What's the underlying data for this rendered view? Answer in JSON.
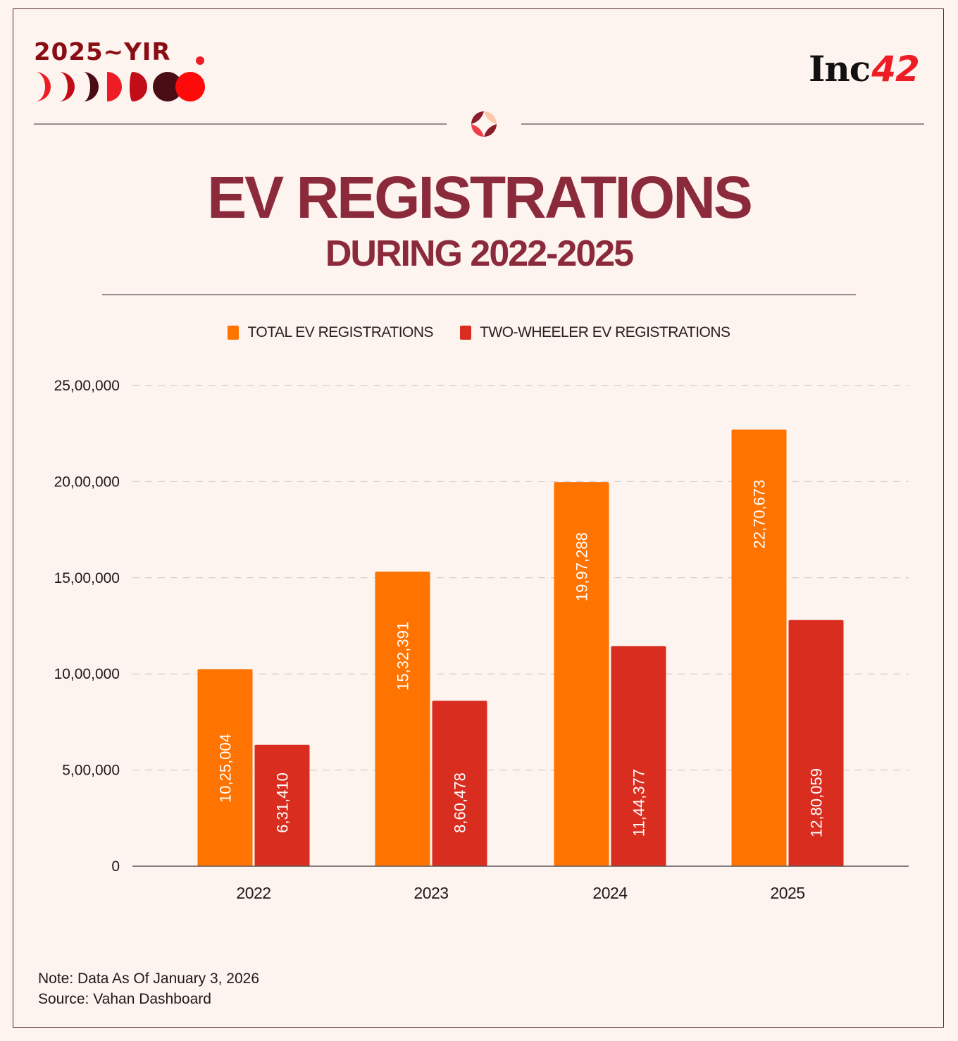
{
  "branding": {
    "yir_label": "2025~YIR",
    "publisher_name": "Inc",
    "publisher_number": "42"
  },
  "header": {
    "title": "EV REGISTRATIONS",
    "subtitle": "DURING 2022-2025"
  },
  "colors": {
    "background": "#fdf3ef",
    "title": "#8b2a3a",
    "total_series": "#ff7300",
    "two_wheeler_series": "#d92d20",
    "gridline": "#cfc3c3",
    "axis": "#5c5456",
    "text": "#1e1a1b"
  },
  "chart_data": {
    "type": "bar",
    "title": "EV REGISTRATIONS",
    "subtitle": "DURING 2022-2025",
    "categories": [
      "2022",
      "2023",
      "2024",
      "2025"
    ],
    "series": [
      {
        "name": "TOTAL EV REGISTRATIONS",
        "color": "#ff7300",
        "values": [
          1025004,
          1532391,
          1997288,
          2270673
        ],
        "labels": [
          "10,25,004",
          "15,32,391",
          "19,97,288",
          "22,70,673"
        ]
      },
      {
        "name": "TWO-WHEELER EV REGISTRATIONS",
        "color": "#d92d20",
        "values": [
          631410,
          860478,
          1144377,
          1280059
        ],
        "labels": [
          "6,31,410",
          "8,60,478",
          "11,44,377",
          "12,80,059"
        ]
      }
    ],
    "yticks": [
      0,
      500000,
      1000000,
      1500000,
      2000000,
      2500000
    ],
    "ytick_labels": [
      "0",
      "5,00,000",
      "10,00,000",
      "15,00,000",
      "20,00,000",
      "25,00,000"
    ],
    "ylim": [
      0,
      2500000
    ],
    "xlabel": "",
    "ylabel": "",
    "grid": true,
    "legend_position": "top-center"
  },
  "footer": {
    "note": "Note: Data As Of January 3, 2026",
    "source": "Source: Vahan Dashboard"
  }
}
